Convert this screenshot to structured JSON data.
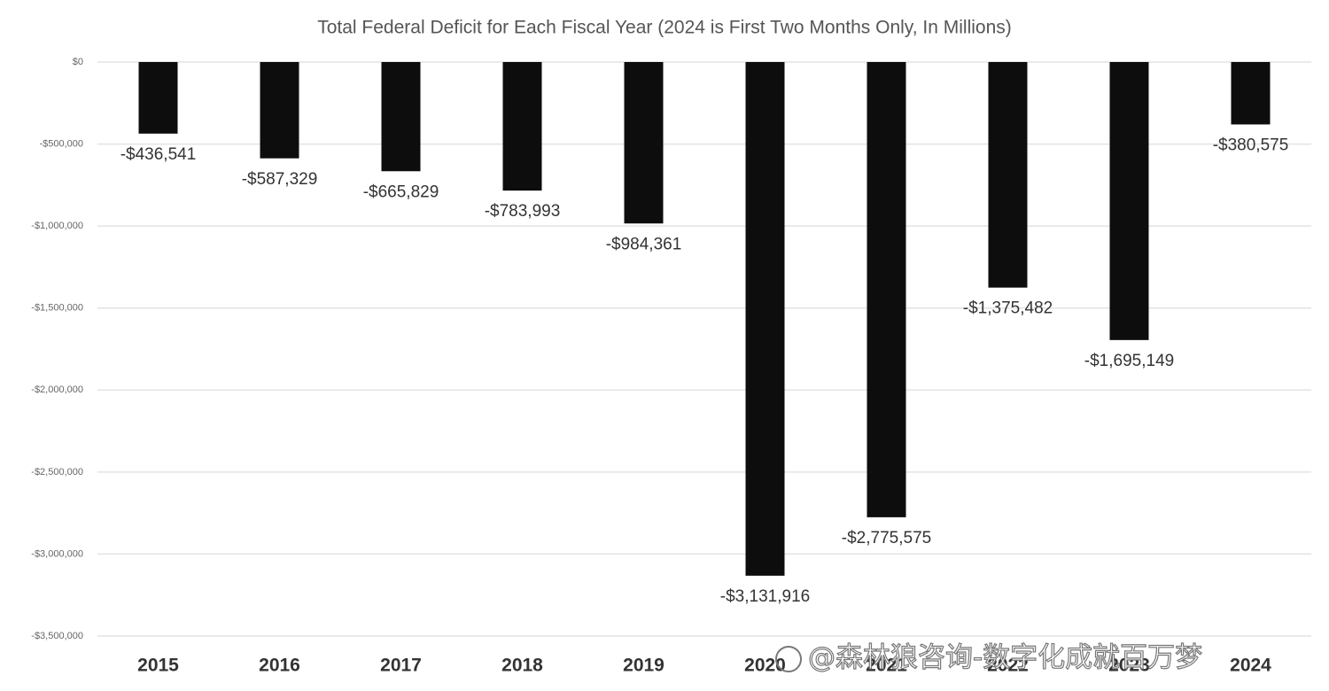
{
  "chart_data": {
    "type": "bar",
    "title": "Total Federal Deficit for Each Fiscal Year (2024 is First Two Months Only, In Millions)",
    "categories": [
      "2015",
      "2016",
      "2017",
      "2018",
      "2019",
      "2020",
      "2021",
      "2022",
      "2023",
      "2024"
    ],
    "values": [
      -436541,
      -587329,
      -665829,
      -783993,
      -984361,
      -3131916,
      -2775575,
      -1375482,
      -1695149,
      -380575
    ],
    "value_labels": [
      "-$436,541",
      "-$587,329",
      "-$665,829",
      "-$783,993",
      "-$984,361",
      "-$3,131,916",
      "-$2,775,575",
      "-$1,375,482",
      "-$1,695,149",
      "-$380,575"
    ],
    "color": "#0d0d0d",
    "ylim": [
      -3500000,
      0
    ],
    "yticks": [
      {
        "value": 0,
        "label": "$0"
      },
      {
        "value": -500000,
        "label": "-$500,000"
      },
      {
        "value": -1000000,
        "label": "-$1,000,000"
      },
      {
        "value": -1500000,
        "label": "-$1,500,000"
      },
      {
        "value": -2000000,
        "label": "-$2,000,000"
      },
      {
        "value": -2500000,
        "label": "-$2,500,000"
      },
      {
        "value": -3000000,
        "label": "-$3,000,000"
      },
      {
        "value": -3500000,
        "label": "-$3,500,000"
      }
    ],
    "grid": true,
    "watermark": "@森林狼咨询-数字化成就百万梦"
  }
}
